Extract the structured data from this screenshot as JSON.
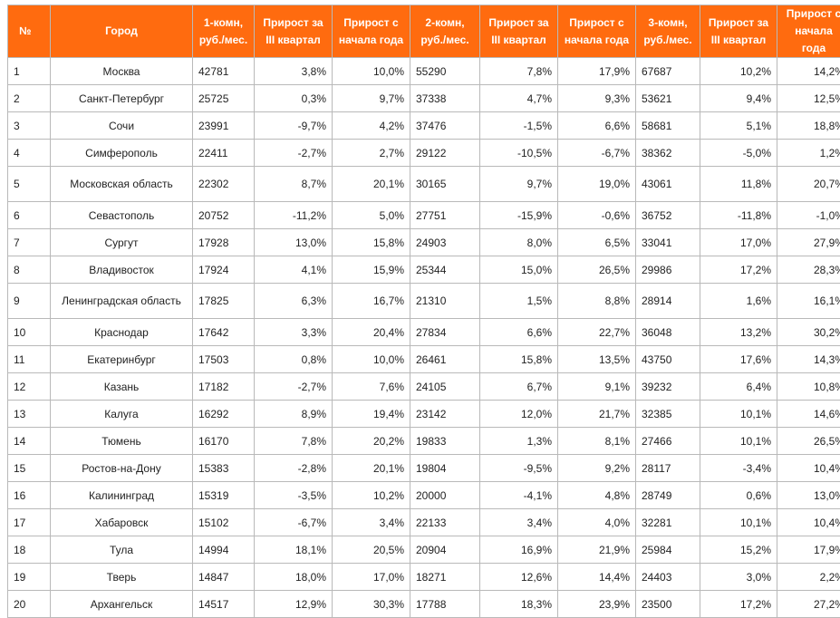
{
  "colors": {
    "header_bg": "#ff6b0f",
    "header_text": "#ffffff",
    "border": "#b9b9b9"
  },
  "table": {
    "headers": [
      "№",
      "Город",
      "1-комн, руб./мес.",
      "Прирост за III квартал",
      "Прирост с начала года",
      "2-комн, руб./мес.",
      "Прирост за III квартал",
      "Прирост с начала года",
      "3-комн, руб./мес.",
      "Прирост за III квартал",
      "Прирост с начала года"
    ],
    "rows": [
      [
        "1",
        "Москва",
        "42781",
        "3,8%",
        "10,0%",
        "55290",
        "7,8%",
        "17,9%",
        "67687",
        "10,2%",
        "14,2%"
      ],
      [
        "2",
        "Санкт-Петербург",
        "25725",
        "0,3%",
        "9,7%",
        "37338",
        "4,7%",
        "9,3%",
        "53621",
        "9,4%",
        "12,5%"
      ],
      [
        "3",
        "Сочи",
        "23991",
        "-9,7%",
        "4,2%",
        "37476",
        "-1,5%",
        "6,6%",
        "58681",
        "5,1%",
        "18,8%"
      ],
      [
        "4",
        "Симферополь",
        "22411",
        "-2,7%",
        "2,7%",
        "29122",
        "-10,5%",
        "-6,7%",
        "38362",
        "-5,0%",
        "1,2%"
      ],
      [
        "5",
        "Московская область",
        "22302",
        "8,7%",
        "20,1%",
        "30165",
        "9,7%",
        "19,0%",
        "43061",
        "11,8%",
        "20,7%"
      ],
      [
        "6",
        "Севастополь",
        "20752",
        "-11,2%",
        "5,0%",
        "27751",
        "-15,9%",
        "-0,6%",
        "36752",
        "-11,8%",
        "-1,0%"
      ],
      [
        "7",
        "Сургут",
        "17928",
        "13,0%",
        "15,8%",
        "24903",
        "8,0%",
        "6,5%",
        "33041",
        "17,0%",
        "27,9%"
      ],
      [
        "8",
        "Владивосток",
        "17924",
        "4,1%",
        "15,9%",
        "25344",
        "15,0%",
        "26,5%",
        "29986",
        "17,2%",
        "28,3%"
      ],
      [
        "9",
        "Ленинградская область",
        "17825",
        "6,3%",
        "16,7%",
        "21310",
        "1,5%",
        "8,8%",
        "28914",
        "1,6%",
        "16,1%"
      ],
      [
        "10",
        "Краснодар",
        "17642",
        "3,3%",
        "20,4%",
        "27834",
        "6,6%",
        "22,7%",
        "36048",
        "13,2%",
        "30,2%"
      ],
      [
        "11",
        "Екатеринбург",
        "17503",
        "0,8%",
        "10,0%",
        "26461",
        "15,8%",
        "13,5%",
        "43750",
        "17,6%",
        "14,3%"
      ],
      [
        "12",
        "Казань",
        "17182",
        "-2,7%",
        "7,6%",
        "24105",
        "6,7%",
        "9,1%",
        "39232",
        "6,4%",
        "10,8%"
      ],
      [
        "13",
        "Калуга",
        "16292",
        "8,9%",
        "19,4%",
        "23142",
        "12,0%",
        "21,7%",
        "32385",
        "10,1%",
        "14,6%"
      ],
      [
        "14",
        "Тюмень",
        "16170",
        "7,8%",
        "20,2%",
        "19833",
        "1,3%",
        "8,1%",
        "27466",
        "10,1%",
        "26,5%"
      ],
      [
        "15",
        "Ростов-на-Дону",
        "15383",
        "-2,8%",
        "20,1%",
        "19804",
        "-9,5%",
        "9,2%",
        "28117",
        "-3,4%",
        "10,4%"
      ],
      [
        "16",
        "Калининград",
        "15319",
        "-3,5%",
        "10,2%",
        "20000",
        "-4,1%",
        "4,8%",
        "28749",
        "0,6%",
        "13,0%"
      ],
      [
        "17",
        "Хабаровск",
        "15102",
        "-6,7%",
        "3,4%",
        "22133",
        "3,4%",
        "4,0%",
        "32281",
        "10,1%",
        "10,4%"
      ],
      [
        "18",
        "Тула",
        "14994",
        "18,1%",
        "20,5%",
        "20904",
        "16,9%",
        "21,9%",
        "25984",
        "15,2%",
        "17,9%"
      ],
      [
        "19",
        "Тверь",
        "14847",
        "18,0%",
        "17,0%",
        "18271",
        "12,6%",
        "14,4%",
        "24403",
        "3,0%",
        "2,2%"
      ],
      [
        "20",
        "Архангельск",
        "14517",
        "12,9%",
        "30,3%",
        "17788",
        "18,3%",
        "23,9%",
        "23500",
        "17,2%",
        "27,2%"
      ]
    ]
  }
}
